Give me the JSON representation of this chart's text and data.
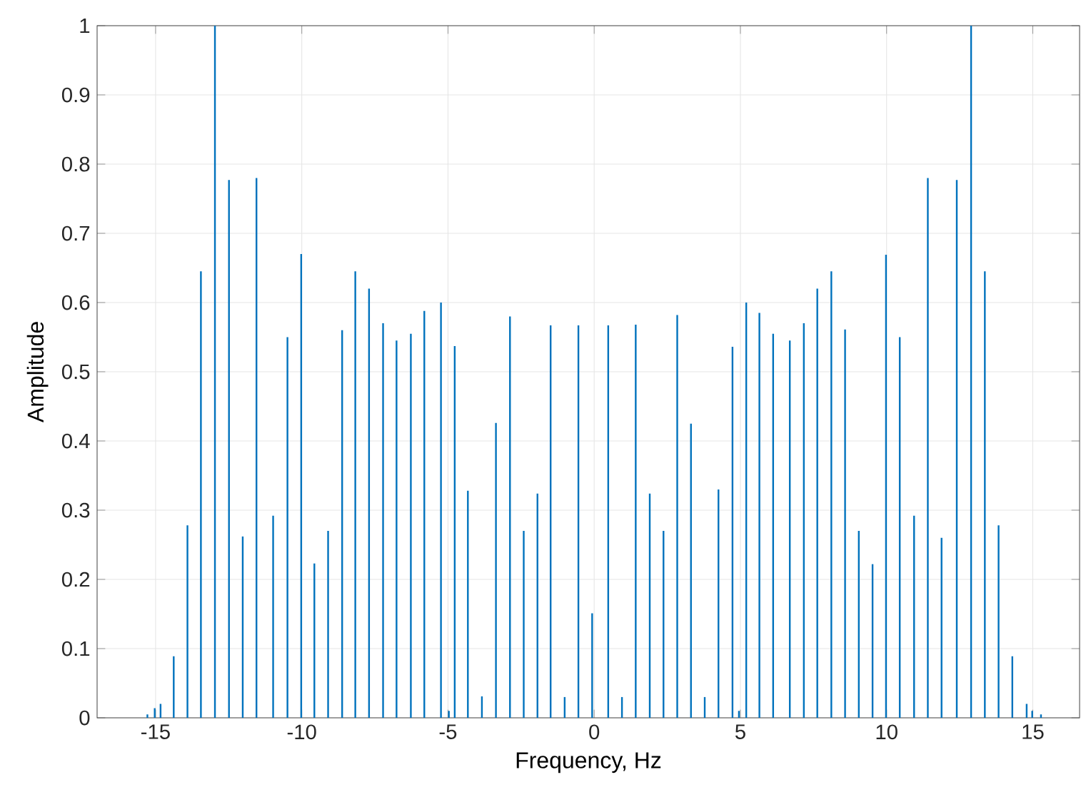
{
  "chart_data": {
    "type": "bar",
    "xlabel": "Frequency, Hz",
    "ylabel": "Amplitude",
    "x": [
      -15.28,
      -15.03,
      -14.83,
      -14.38,
      -13.91,
      -13.45,
      -12.97,
      -12.49,
      -12.02,
      -11.55,
      -10.98,
      -10.49,
      -10.02,
      -9.57,
      -9.1,
      -8.62,
      -8.17,
      -7.7,
      -7.22,
      -6.76,
      -6.27,
      -5.81,
      -5.24,
      -4.97,
      -4.77,
      -4.32,
      -3.84,
      -3.36,
      -2.88,
      -2.41,
      -1.94,
      -1.49,
      -1.01,
      -0.54,
      -0.07,
      0.48,
      0.95,
      1.42,
      1.9,
      2.37,
      2.84,
      3.31,
      3.78,
      4.25,
      4.73,
      4.95,
      5.2,
      5.65,
      6.12,
      6.69,
      7.17,
      7.63,
      8.11,
      8.58,
      9.05,
      9.52,
      9.98,
      10.45,
      10.94,
      11.41,
      11.88,
      12.4,
      12.89,
      13.36,
      13.83,
      14.3,
      14.79,
      14.98,
      15.28
    ],
    "values": [
      0.005,
      0.014,
      0.02,
      0.089,
      0.278,
      0.645,
      1.0,
      0.777,
      0.262,
      0.78,
      0.292,
      0.55,
      0.67,
      0.223,
      0.27,
      0.56,
      0.645,
      0.62,
      0.57,
      0.545,
      0.555,
      0.588,
      0.6,
      0.01,
      0.537,
      0.328,
      0.031,
      0.426,
      0.58,
      0.27,
      0.324,
      0.567,
      0.03,
      0.567,
      0.151,
      0.567,
      0.03,
      0.568,
      0.324,
      0.27,
      0.582,
      0.425,
      0.03,
      0.33,
      0.536,
      0.01,
      0.6,
      0.585,
      0.555,
      0.545,
      0.57,
      0.62,
      0.645,
      0.561,
      0.27,
      0.222,
      0.669,
      0.55,
      0.292,
      0.78,
      0.26,
      0.777,
      1.0,
      0.645,
      0.278,
      0.089,
      0.02,
      0.01,
      0.005
    ],
    "color": "#0072bd",
    "xlim": [
      -17,
      16.6
    ],
    "ylim": [
      0,
      1
    ],
    "xticks": [
      -15,
      -10,
      -5,
      0,
      5,
      10,
      15
    ],
    "yticks": [
      0,
      0.1,
      0.2,
      0.3,
      0.4,
      0.5,
      0.6,
      0.7,
      0.8,
      0.9,
      1
    ],
    "grid": true
  }
}
